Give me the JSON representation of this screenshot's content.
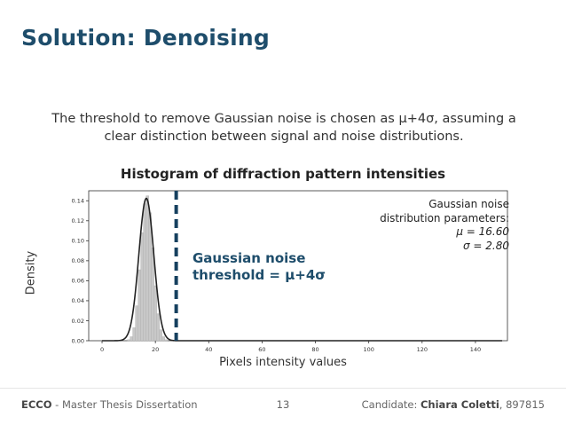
{
  "slide": {
    "title": "Solution: Denoising",
    "intro_line1": "The threshold to remove Gaussian noise is chosen as μ+4σ, assuming a",
    "intro_line2": "clear distinction between signal and noise distributions."
  },
  "annotations": {
    "params_title_line1": "Gaussian noise",
    "params_title_line2": "distribution parameters:",
    "mu": "μ = 16.60",
    "sigma": "σ = 2.80",
    "threshold_line1": "Gaussian noise",
    "threshold_line2": "threshold = μ+4σ"
  },
  "footer": {
    "left_brand": "ECCO",
    "left_text": " - Master Thesis Dissertation",
    "page": "13",
    "right_label": "Candidate: ",
    "right_name": "Chiara Coletti",
    "right_id": ", 897815"
  },
  "colors": {
    "title": "#1e4d6b",
    "threshold_line": "#16405f",
    "histogram_fill": "#c8c8c8",
    "kde_line": "#222222"
  },
  "chart_data": {
    "type": "bar",
    "title": "Histogram of diffraction pattern intensities",
    "xlabel": "Pixels intensity values",
    "ylabel": "Density",
    "xlim": [
      -5,
      152
    ],
    "ylim": [
      0,
      0.15
    ],
    "xticks": [
      0,
      20,
      40,
      60,
      80,
      100,
      120,
      140
    ],
    "yticks": [
      0.0,
      0.02,
      0.04,
      0.06,
      0.08,
      0.1,
      0.12,
      0.14
    ],
    "ytick_labels": [
      "0.00",
      "0.02",
      "0.04",
      "0.06",
      "0.08",
      "0.10",
      "0.12",
      "0.14"
    ],
    "histogram": {
      "x": [
        10,
        11,
        12,
        13,
        14,
        15,
        16,
        17,
        18,
        19,
        20,
        21,
        22,
        23,
        24
      ],
      "density": [
        0.001,
        0.004,
        0.013,
        0.035,
        0.071,
        0.108,
        0.137,
        0.145,
        0.128,
        0.093,
        0.055,
        0.027,
        0.011,
        0.004,
        0.001
      ]
    },
    "gaussian_fit": {
      "mu": 16.6,
      "sigma": 2.8,
      "x_range": [
        0,
        150
      ]
    },
    "threshold_x": 27.8,
    "grid": false
  }
}
